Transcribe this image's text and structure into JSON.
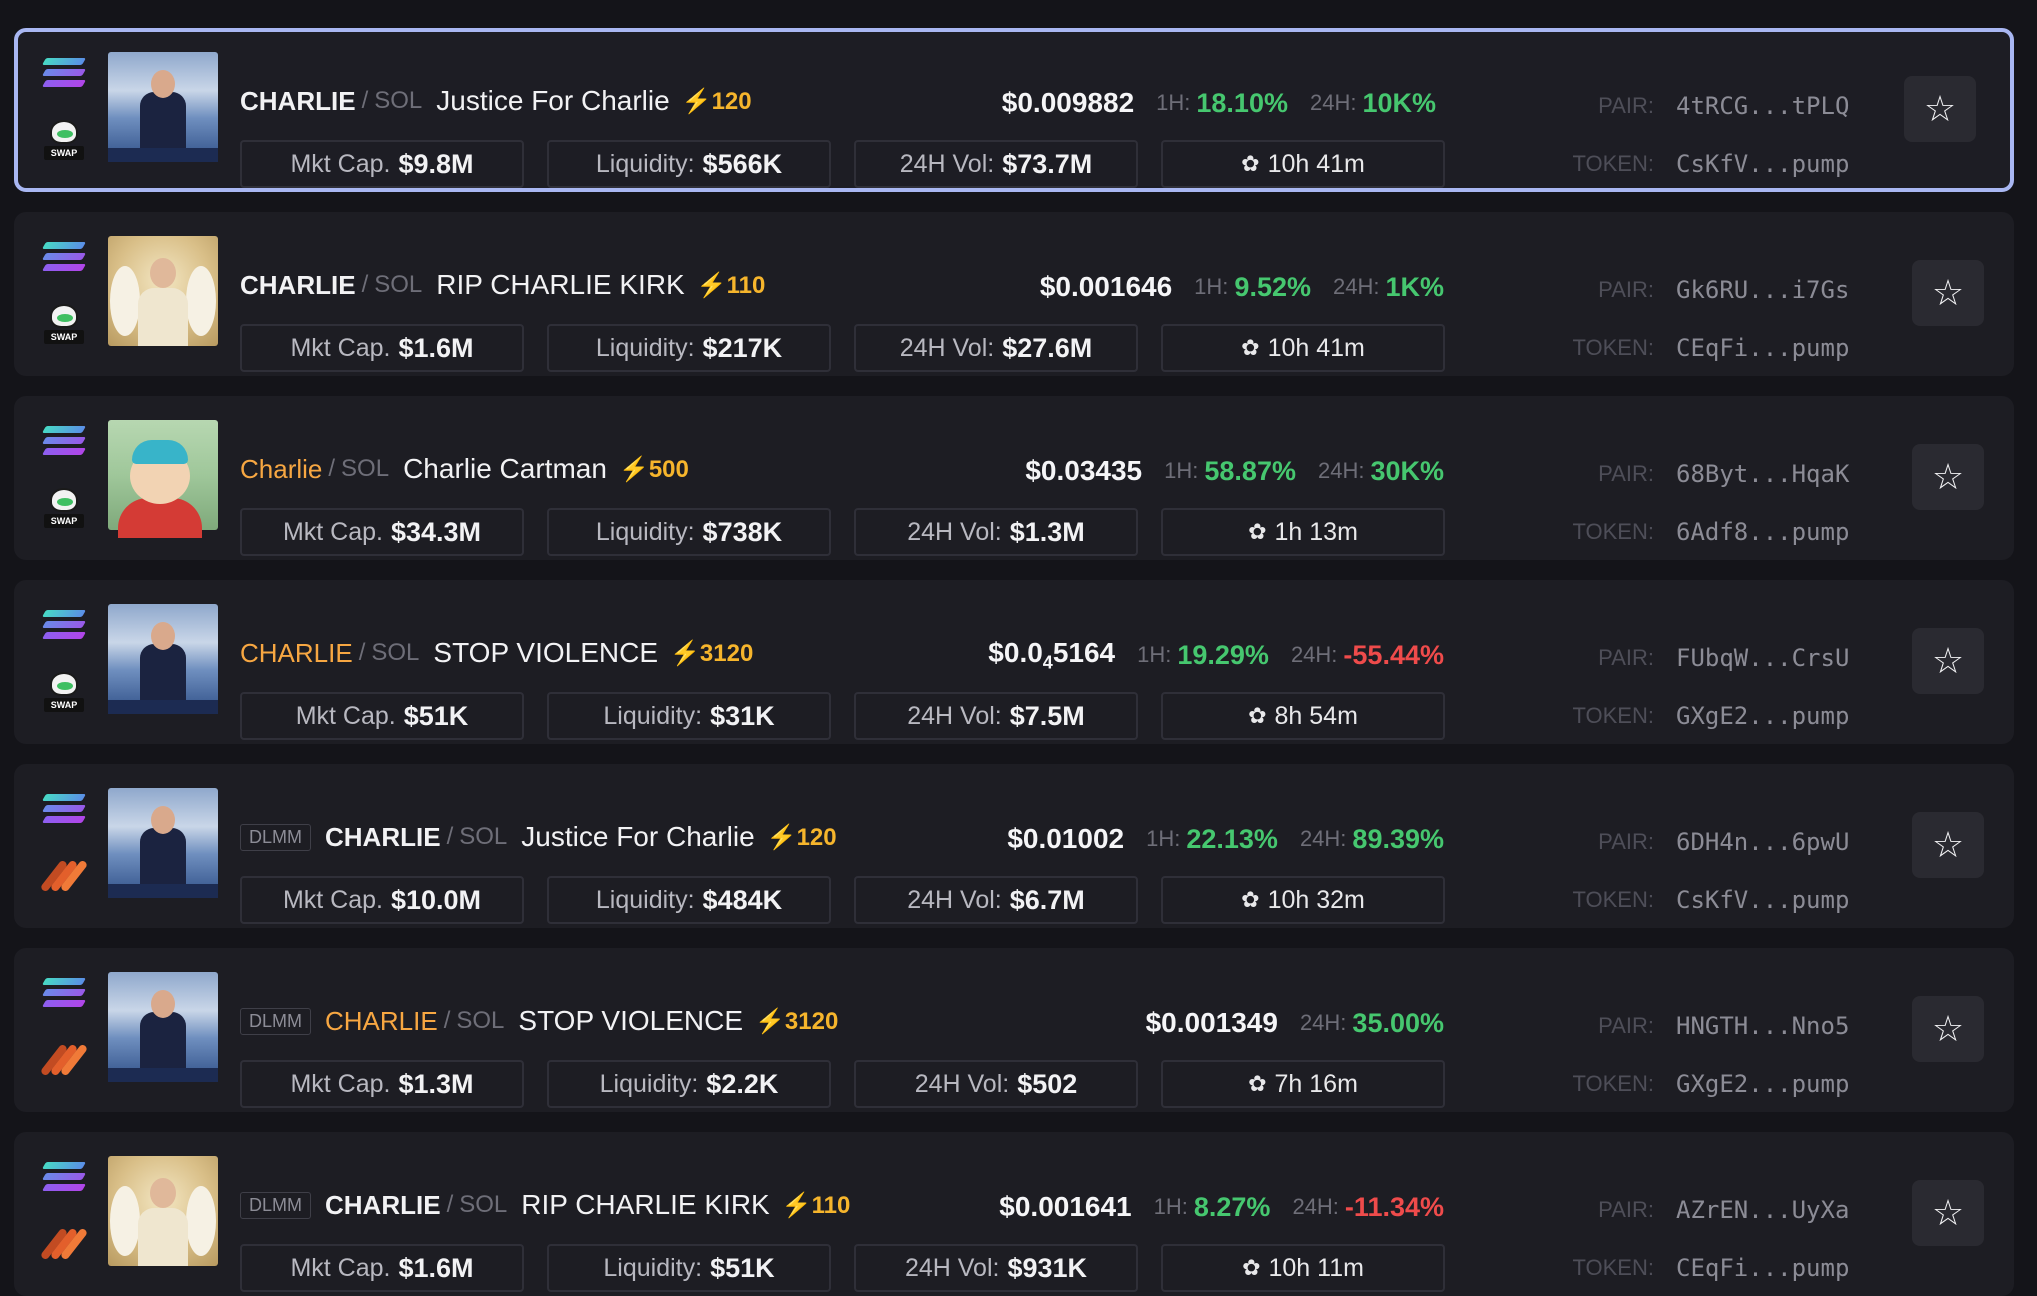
{
  "rows": [
    {
      "dex": "swap",
      "badge": "",
      "symbol": "CHARLIE",
      "symbol_color": "white",
      "quote": "SOL",
      "name": "Justice For Charlie",
      "boost": "120",
      "price": "$0.009882",
      "price_sub": "",
      "price_tail": "",
      "h1_label": "1H:",
      "h1": "18.10%",
      "h1_dir": "up",
      "h24_label": "24H:",
      "h24": "10K%",
      "h24_dir": "up",
      "mktcap_label": "Mkt Cap.",
      "mktcap": "$9.8M",
      "liq_label": "Liquidity:",
      "liq": "$566K",
      "vol_label": "24H Vol:",
      "vol": "$73.7M",
      "age": "10h 41m",
      "pair_label": "PAIR:",
      "pair": "4tRCG...tPLQ",
      "token_label": "TOKEN:",
      "token": "CsKfV...pump",
      "thumb": "stage",
      "selected": true
    },
    {
      "dex": "swap",
      "badge": "",
      "symbol": "CHARLIE",
      "symbol_color": "white",
      "quote": "SOL",
      "name": "RIP CHARLIE KIRK",
      "boost": "110",
      "price": "$0.001646",
      "price_sub": "",
      "price_tail": "",
      "h1_label": "1H:",
      "h1": "9.52%",
      "h1_dir": "up",
      "h24_label": "24H:",
      "h24": "1K%",
      "h24_dir": "up",
      "mktcap_label": "Mkt Cap.",
      "mktcap": "$1.6M",
      "liq_label": "Liquidity:",
      "liq": "$217K",
      "vol_label": "24H Vol:",
      "vol": "$27.6M",
      "age": "10h 41m",
      "pair_label": "PAIR:",
      "pair": "Gk6RU...i7Gs",
      "token_label": "TOKEN:",
      "token": "CEqFi...pump",
      "thumb": "angel",
      "selected": false
    },
    {
      "dex": "swap",
      "badge": "",
      "symbol": "Charlie",
      "symbol_color": "orange",
      "quote": "SOL",
      "name": "Charlie Cartman",
      "boost": "500",
      "price": "$0.03435",
      "price_sub": "",
      "price_tail": "",
      "h1_label": "1H:",
      "h1": "58.87%",
      "h1_dir": "up",
      "h24_label": "24H:",
      "h24": "30K%",
      "h24_dir": "up",
      "mktcap_label": "Mkt Cap.",
      "mktcap": "$34.3M",
      "liq_label": "Liquidity:",
      "liq": "$738K",
      "vol_label": "24H Vol:",
      "vol": "$1.3M",
      "age": "1h 13m",
      "pair_label": "PAIR:",
      "pair": "68Byt...HqaK",
      "token_label": "TOKEN:",
      "token": "6Adf8...pump",
      "thumb": "cartman",
      "selected": false
    },
    {
      "dex": "swap",
      "badge": "",
      "symbol": "CHARLIE",
      "symbol_color": "orange",
      "quote": "SOL",
      "name": "STOP VIOLENCE",
      "boost": "3120",
      "price": "$0.0",
      "price_sub": "4",
      "price_tail": "5164",
      "h1_label": "1H:",
      "h1": "19.29%",
      "h1_dir": "up",
      "h24_label": "24H:",
      "h24": "-55.44%",
      "h24_dir": "down",
      "mktcap_label": "Mkt Cap.",
      "mktcap": "$51K",
      "liq_label": "Liquidity:",
      "liq": "$31K",
      "vol_label": "24H Vol:",
      "vol": "$7.5M",
      "age": "8h 54m",
      "pair_label": "PAIR:",
      "pair": "FUbqW...CrsU",
      "token_label": "TOKEN:",
      "token": "GXgE2...pump",
      "thumb": "stage",
      "selected": false
    },
    {
      "dex": "dlmm",
      "badge": "DLMM",
      "symbol": "CHARLIE",
      "symbol_color": "white",
      "quote": "SOL",
      "name": "Justice For Charlie",
      "boost": "120",
      "price": "$0.01002",
      "price_sub": "",
      "price_tail": "",
      "h1_label": "1H:",
      "h1": "22.13%",
      "h1_dir": "up",
      "h24_label": "24H:",
      "h24": "89.39%",
      "h24_dir": "up",
      "mktcap_label": "Mkt Cap.",
      "mktcap": "$10.0M",
      "liq_label": "Liquidity:",
      "liq": "$484K",
      "vol_label": "24H Vol:",
      "vol": "$6.7M",
      "age": "10h 32m",
      "pair_label": "PAIR:",
      "pair": "6DH4n...6pwU",
      "token_label": "TOKEN:",
      "token": "CsKfV...pump",
      "thumb": "stage",
      "selected": false
    },
    {
      "dex": "dlmm",
      "badge": "DLMM",
      "symbol": "CHARLIE",
      "symbol_color": "orange",
      "quote": "SOL",
      "name": "STOP VIOLENCE",
      "boost": "3120",
      "price": "$0.001349",
      "price_sub": "",
      "price_tail": "",
      "h1_label": "",
      "h1": "",
      "h1_dir": "up",
      "h24_label": "24H:",
      "h24": "35.00%",
      "h24_dir": "up",
      "mktcap_label": "Mkt Cap.",
      "mktcap": "$1.3M",
      "liq_label": "Liquidity:",
      "liq": "$2.2K",
      "vol_label": "24H Vol:",
      "vol": "$502",
      "age": "7h 16m",
      "pair_label": "PAIR:",
      "pair": "HNGTH...Nno5",
      "token_label": "TOKEN:",
      "token": "GXgE2...pump",
      "thumb": "stage",
      "selected": false
    },
    {
      "dex": "dlmm",
      "badge": "DLMM",
      "symbol": "CHARLIE",
      "symbol_color": "white",
      "quote": "SOL",
      "name": "RIP CHARLIE KIRK",
      "boost": "110",
      "price": "$0.001641",
      "price_sub": "",
      "price_tail": "",
      "h1_label": "1H:",
      "h1": "8.27%",
      "h1_dir": "up",
      "h24_label": "24H:",
      "h24": "-11.34%",
      "h24_dir": "down",
      "mktcap_label": "Mkt Cap.",
      "mktcap": "$1.6M",
      "liq_label": "Liquidity:",
      "liq": "$51K",
      "vol_label": "24H Vol:",
      "vol": "$931K",
      "age": "10h 11m",
      "pair_label": "PAIR:",
      "pair": "AZrEN...UyXa",
      "token_label": "TOKEN:",
      "token": "CEqFi...pump",
      "thumb": "angel",
      "selected": false
    }
  ],
  "colors": {
    "background": "#141419",
    "row": "#1d1d23",
    "selected_border": "#a9b7f2",
    "positive": "#46c76f",
    "negative": "#ef4b4b",
    "boost": "#f6b52c",
    "orange_symbol": "#f7a742"
  },
  "icons": {
    "chain": "solana-icon",
    "dex_swap": "raydium-swap-icon",
    "dex_dlmm": "meteora-dlmm-icon",
    "boost": "lightning-icon",
    "age": "sprout-icon",
    "favorite": "star-icon"
  }
}
